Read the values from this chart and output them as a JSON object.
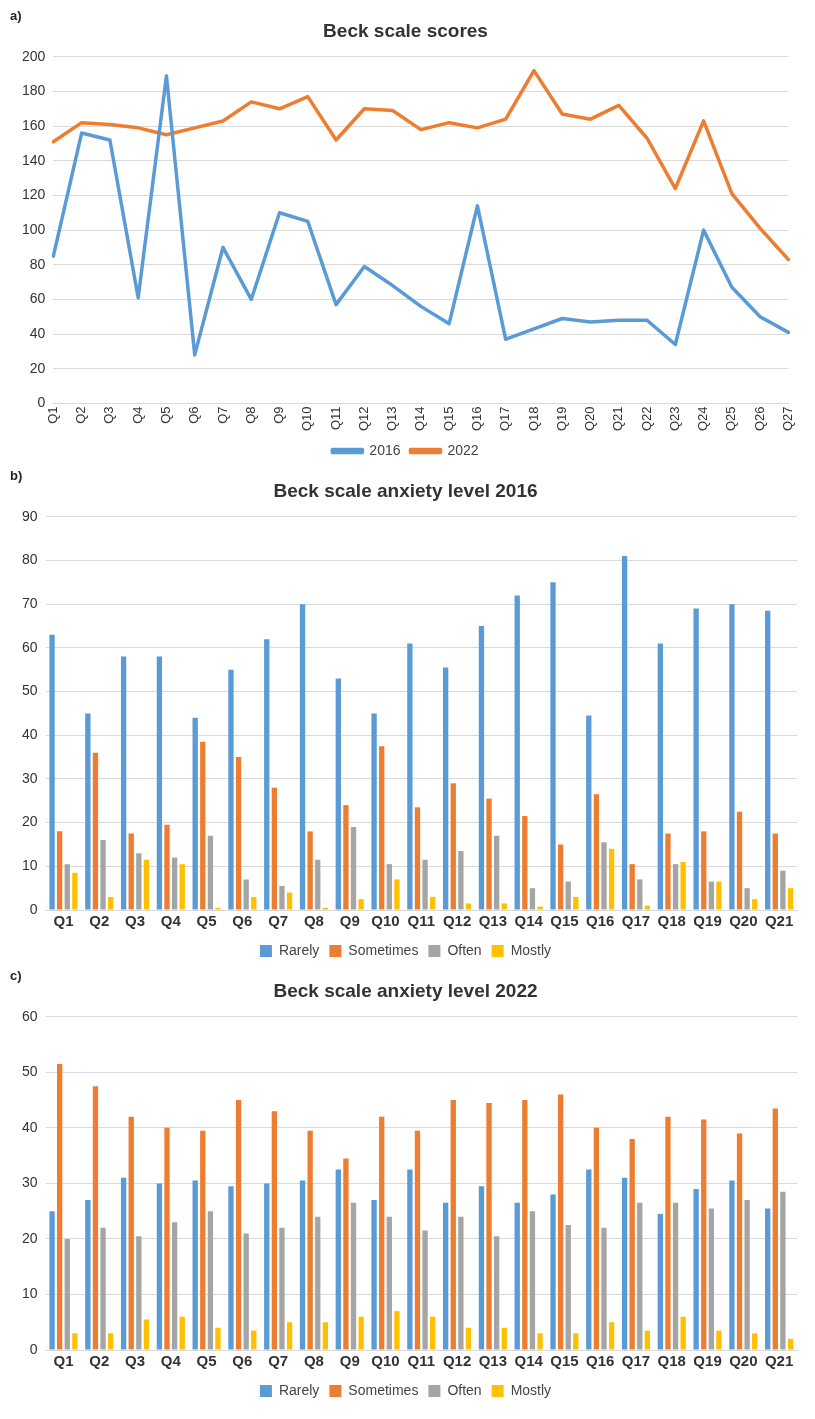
{
  "chart_data": [
    {
      "type": "line",
      "title": "Beck scale scores",
      "annotations": [
        "a)"
      ],
      "categories": [
        "Q1",
        "Q2",
        "Q3",
        "Q4",
        "Q5",
        "Q6",
        "Q7",
        "Q8",
        "Q9",
        "Q10",
        "Q11",
        "Q12",
        "Q13",
        "Q14",
        "Q15",
        "Q16",
        "Q17",
        "Q18",
        "Q19",
        "Q20",
        "Q21",
        "Q22",
        "Q23",
        "Q24",
        "Q25",
        "Q26",
        "Q27"
      ],
      "series": [
        {
          "name": "2016",
          "color": "#5b9bd5",
          "values": [
            85,
            156,
            152,
            61,
            189,
            28,
            90,
            60,
            110,
            105,
            57,
            79,
            68,
            56,
            46,
            114,
            37,
            43,
            49,
            47,
            48,
            48,
            34,
            100,
            67,
            50,
            41
          ]
        },
        {
          "name": "2022",
          "color": "#ed7d31",
          "values": [
            151,
            162,
            161,
            159,
            155,
            159,
            163,
            174,
            170,
            177,
            152,
            170,
            169,
            158,
            162,
            159,
            164,
            192,
            167,
            164,
            172,
            153,
            124,
            163,
            121,
            101,
            83
          ]
        }
      ],
      "ylim": [
        0,
        200
      ],
      "yticks": [
        0,
        20,
        40,
        60,
        80,
        100,
        120,
        140,
        160,
        180,
        200
      ],
      "grid": "y",
      "legend": "bottom",
      "marker": "none",
      "line_style": "solid"
    },
    {
      "type": "bar",
      "title": "Beck scale anxiety level 2016",
      "annotations": [
        "b)"
      ],
      "categories": [
        "Q1",
        "Q2",
        "Q3",
        "Q4",
        "Q5",
        "Q6",
        "Q7",
        "Q8",
        "Q9",
        "Q10",
        "Q11",
        "Q12",
        "Q13",
        "Q14",
        "Q15",
        "Q16",
        "Q17",
        "Q18",
        "Q19",
        "Q20",
        "Q21"
      ],
      "series": [
        {
          "name": "Rarely",
          "color": "#5b9bd5",
          "values": [
            63,
            45,
            58,
            58,
            44,
            55,
            62,
            70,
            53,
            45,
            61,
            55.5,
            65,
            72,
            75,
            44.5,
            81,
            61,
            69,
            70,
            68.5
          ]
        },
        {
          "name": "Sometimes",
          "color": "#ed7d31",
          "values": [
            18,
            36,
            17.5,
            19.5,
            38.5,
            35,
            28,
            18,
            24,
            37.5,
            23.5,
            29,
            25.5,
            21.5,
            15,
            26.5,
            10.5,
            17.5,
            18,
            22.5,
            17.5
          ]
        },
        {
          "name": "Often",
          "color": "#a5a5a5",
          "values": [
            10.5,
            16,
            13,
            12,
            17,
            7,
            5.5,
            11.5,
            19,
            10.5,
            11.5,
            13.5,
            17,
            5,
            6.5,
            15.5,
            7,
            10.5,
            6.5,
            5,
            9
          ]
        },
        {
          "name": "Mostly",
          "color": "#ffc000",
          "values": [
            8.5,
            3,
            11.5,
            10.5,
            0.5,
            3,
            4,
            0.5,
            2.5,
            7,
            3,
            1.5,
            1.5,
            0.8,
            3,
            14,
            1,
            11,
            6.5,
            2.5,
            5
          ]
        }
      ],
      "ylim": [
        0,
        90
      ],
      "yticks": [
        0,
        10,
        20,
        30,
        40,
        50,
        60,
        70,
        80,
        90
      ],
      "grid": "y",
      "legend": "bottom"
    },
    {
      "type": "bar",
      "title": "Beck scale anxiety level 2022",
      "annotations": [
        "c)"
      ],
      "categories": [
        "Q1",
        "Q2",
        "Q3",
        "Q4",
        "Q5",
        "Q6",
        "Q7",
        "Q8",
        "Q9",
        "Q10",
        "Q11",
        "Q12",
        "Q13",
        "Q14",
        "Q15",
        "Q16",
        "Q17",
        "Q18",
        "Q19",
        "Q20",
        "Q21"
      ],
      "series": [
        {
          "name": "Rarely",
          "color": "#5b9bd5",
          "values": [
            25,
            27,
            31,
            30,
            30.5,
            29.5,
            30,
            30.5,
            32.5,
            27,
            32.5,
            26.5,
            29.5,
            26.5,
            28,
            32.5,
            31,
            24.5,
            29,
            30.5,
            25.5
          ]
        },
        {
          "name": "Sometimes",
          "color": "#ed7d31",
          "values": [
            51.5,
            47.5,
            42,
            40,
            39.5,
            45,
            43,
            39.5,
            34.5,
            42,
            39.5,
            45,
            44.5,
            45,
            46,
            40,
            38,
            42,
            41.5,
            39,
            43.5
          ]
        },
        {
          "name": "Often",
          "color": "#a5a5a5",
          "values": [
            20,
            22,
            20.5,
            23,
            25,
            21,
            22,
            24,
            26.5,
            24,
            21.5,
            24,
            20.5,
            25,
            22.5,
            22,
            26.5,
            26.5,
            25.5,
            27,
            28.5
          ]
        },
        {
          "name": "Mostly",
          "color": "#ffc000",
          "values": [
            3,
            3,
            5.5,
            6,
            4,
            3.5,
            5,
            5,
            6,
            7,
            6,
            4,
            4,
            3,
            3,
            5,
            3.5,
            6,
            3.5,
            3,
            2
          ]
        }
      ],
      "ylim": [
        0,
        60
      ],
      "yticks": [
        0,
        10,
        20,
        30,
        40,
        50,
        60
      ],
      "grid": "y",
      "legend": "bottom"
    }
  ]
}
